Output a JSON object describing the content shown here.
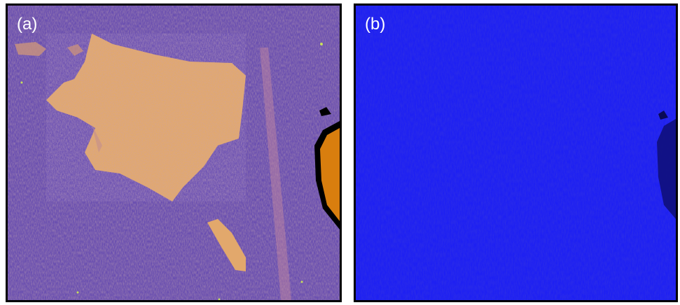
{
  "panels": [
    {
      "label": "(a)",
      "background_color": "#6a4fb0",
      "flake_color": "#e0a86a",
      "holder_color": "#d97e0e"
    },
    {
      "label": "(b)",
      "background_color": "#1e20f2",
      "holder_color": "#10107a"
    }
  ]
}
